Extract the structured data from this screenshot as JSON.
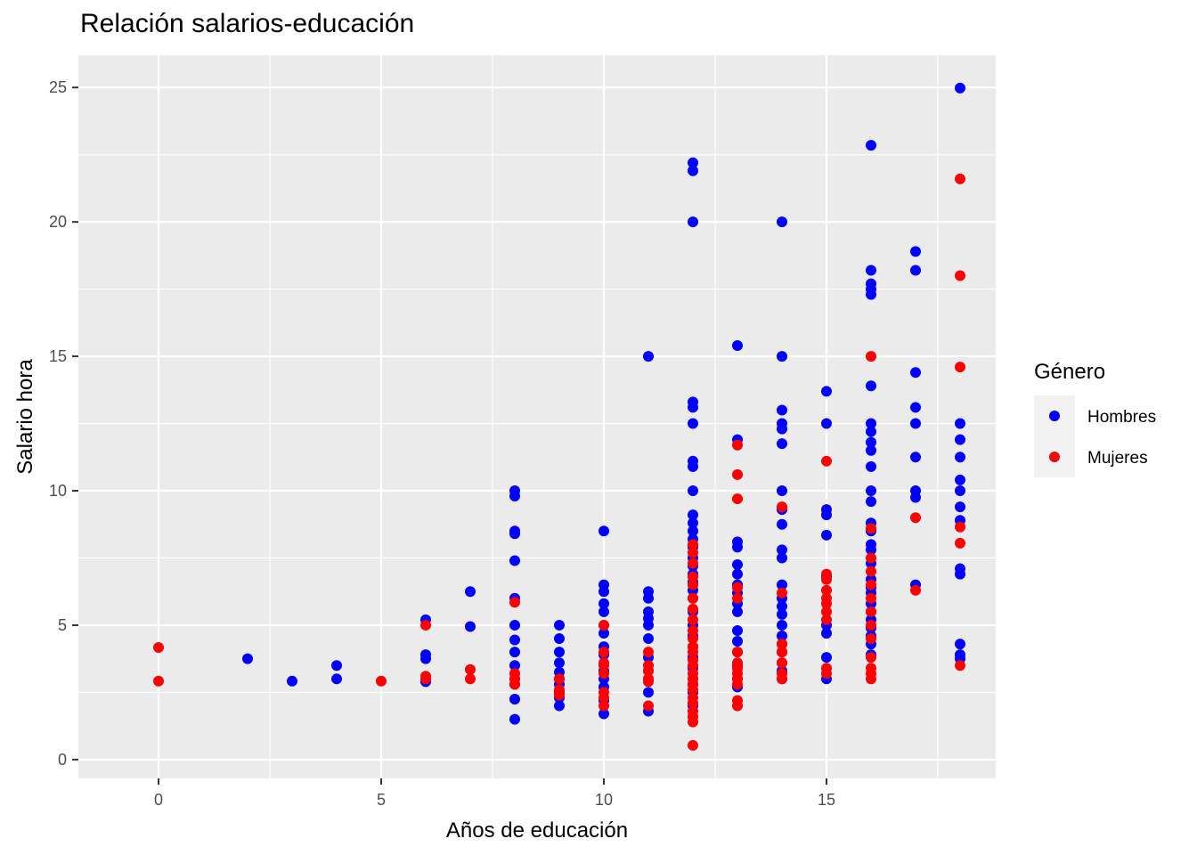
{
  "chart_data": {
    "type": "scatter",
    "title": "Relación salarios-educación",
    "xlabel": "Años de educación",
    "ylabel": "Salario hora",
    "xlim": [
      -1.8,
      18.8
    ],
    "ylim": [
      -0.7,
      26.2
    ],
    "x_ticks": [
      0,
      5,
      10,
      15
    ],
    "y_ticks": [
      0,
      5,
      10,
      15,
      20,
      25
    ],
    "grid": true,
    "legend": {
      "title": "Género",
      "placement": "right",
      "entries": [
        {
          "name": "Hombres",
          "color": "#0000ff"
        },
        {
          "name": "Mujeres",
          "color": "#ff0000"
        }
      ]
    },
    "series": [
      {
        "name": "Hombres",
        "color": "#0000ff",
        "points": [
          [
            2,
            3.75
          ],
          [
            3,
            2.92
          ],
          [
            4,
            3.5
          ],
          [
            4,
            3.0
          ],
          [
            6,
            5.2
          ],
          [
            6,
            3.9
          ],
          [
            6,
            3.75
          ],
          [
            6,
            2.9
          ],
          [
            7,
            6.25
          ],
          [
            7,
            4.95
          ],
          [
            8,
            10.0
          ],
          [
            8,
            9.8
          ],
          [
            8,
            8.5
          ],
          [
            8,
            8.4
          ],
          [
            8,
            7.4
          ],
          [
            8,
            6.0
          ],
          [
            8,
            5.0
          ],
          [
            8,
            4.45
          ],
          [
            8,
            4.0
          ],
          [
            8,
            3.5
          ],
          [
            8,
            3.0
          ],
          [
            8,
            2.8
          ],
          [
            8,
            2.25
          ],
          [
            8,
            1.5
          ],
          [
            9,
            5.0
          ],
          [
            9,
            4.5
          ],
          [
            9,
            4.0
          ],
          [
            9,
            3.6
          ],
          [
            9,
            3.25
          ],
          [
            9,
            3.0
          ],
          [
            9,
            2.8
          ],
          [
            9,
            2.5
          ],
          [
            9,
            2.3
          ],
          [
            9,
            2.0
          ],
          [
            10,
            8.5
          ],
          [
            10,
            6.5
          ],
          [
            10,
            6.25
          ],
          [
            10,
            5.8
          ],
          [
            10,
            5.5
          ],
          [
            10,
            5.0
          ],
          [
            10,
            4.7
          ],
          [
            10,
            4.2
          ],
          [
            10,
            3.9
          ],
          [
            10,
            3.3
          ],
          [
            10,
            3.0
          ],
          [
            10,
            2.7
          ],
          [
            10,
            2.2
          ],
          [
            10,
            1.7
          ],
          [
            11,
            15.0
          ],
          [
            11,
            6.25
          ],
          [
            11,
            6.0
          ],
          [
            11,
            5.5
          ],
          [
            11,
            5.25
          ],
          [
            11,
            5.0
          ],
          [
            11,
            4.5
          ],
          [
            11,
            3.8
          ],
          [
            11,
            3.3
          ],
          [
            11,
            3.0
          ],
          [
            11,
            2.5
          ],
          [
            11,
            1.8
          ],
          [
            12,
            22.2
          ],
          [
            12,
            21.9
          ],
          [
            12,
            20.0
          ],
          [
            12,
            13.3
          ],
          [
            12,
            13.1
          ],
          [
            12,
            12.5
          ],
          [
            12,
            11.1
          ],
          [
            12,
            10.9
          ],
          [
            12,
            10.0
          ],
          [
            12,
            9.1
          ],
          [
            12,
            8.8
          ],
          [
            12,
            8.5
          ],
          [
            12,
            8.2
          ],
          [
            12,
            7.9
          ],
          [
            12,
            7.5
          ],
          [
            12,
            7.2
          ],
          [
            12,
            6.9
          ],
          [
            12,
            6.6
          ],
          [
            12,
            6.3
          ],
          [
            12,
            6.0
          ],
          [
            12,
            5.5
          ],
          [
            12,
            5.0
          ],
          [
            12,
            4.6
          ],
          [
            12,
            4.2
          ],
          [
            12,
            3.8
          ],
          [
            12,
            3.4
          ],
          [
            12,
            3.0
          ],
          [
            12,
            2.8
          ],
          [
            12,
            2.5
          ],
          [
            12,
            2.0
          ],
          [
            13,
            15.4
          ],
          [
            13,
            11.9
          ],
          [
            13,
            8.1
          ],
          [
            13,
            7.9
          ],
          [
            13,
            7.25
          ],
          [
            13,
            6.9
          ],
          [
            13,
            6.5
          ],
          [
            13,
            6.2
          ],
          [
            13,
            5.8
          ],
          [
            13,
            5.5
          ],
          [
            13,
            4.8
          ],
          [
            13,
            4.4
          ],
          [
            13,
            4.0
          ],
          [
            13,
            3.5
          ],
          [
            13,
            3.0
          ],
          [
            13,
            2.7
          ],
          [
            14,
            20.0
          ],
          [
            14,
            15.0
          ],
          [
            14,
            13.0
          ],
          [
            14,
            12.5
          ],
          [
            14,
            12.3
          ],
          [
            14,
            11.75
          ],
          [
            14,
            10.0
          ],
          [
            14,
            9.3
          ],
          [
            14,
            8.75
          ],
          [
            14,
            7.8
          ],
          [
            14,
            7.5
          ],
          [
            14,
            6.5
          ],
          [
            14,
            6.0
          ],
          [
            14,
            5.7
          ],
          [
            14,
            5.4
          ],
          [
            14,
            5.0
          ],
          [
            14,
            4.6
          ],
          [
            14,
            4.3
          ],
          [
            14,
            4.0
          ],
          [
            14,
            3.6
          ],
          [
            14,
            3.3
          ],
          [
            14,
            3.0
          ],
          [
            15,
            13.7
          ],
          [
            15,
            12.5
          ],
          [
            15,
            9.3
          ],
          [
            15,
            9.1
          ],
          [
            15,
            8.35
          ],
          [
            15,
            6.8
          ],
          [
            15,
            5.0
          ],
          [
            15,
            4.7
          ],
          [
            15,
            3.8
          ],
          [
            15,
            3.0
          ],
          [
            16,
            22.85
          ],
          [
            16,
            18.2
          ],
          [
            16,
            17.7
          ],
          [
            16,
            17.5
          ],
          [
            16,
            17.3
          ],
          [
            16,
            13.9
          ],
          [
            16,
            12.5
          ],
          [
            16,
            12.2
          ],
          [
            16,
            11.8
          ],
          [
            16,
            11.5
          ],
          [
            16,
            10.9
          ],
          [
            16,
            10.0
          ],
          [
            16,
            9.6
          ],
          [
            16,
            8.8
          ],
          [
            16,
            8.5
          ],
          [
            16,
            8.0
          ],
          [
            16,
            7.8
          ],
          [
            16,
            7.3
          ],
          [
            16,
            6.7
          ],
          [
            16,
            6.4
          ],
          [
            16,
            6.2
          ],
          [
            16,
            5.8
          ],
          [
            16,
            5.5
          ],
          [
            16,
            5.2
          ],
          [
            16,
            4.9
          ],
          [
            16,
            4.6
          ],
          [
            16,
            4.3
          ],
          [
            16,
            3.9
          ],
          [
            17,
            18.9
          ],
          [
            17,
            18.2
          ],
          [
            17,
            14.4
          ],
          [
            17,
            13.1
          ],
          [
            17,
            12.5
          ],
          [
            17,
            11.25
          ],
          [
            17,
            10.0
          ],
          [
            17,
            9.75
          ],
          [
            17,
            6.5
          ],
          [
            18,
            24.98
          ],
          [
            18,
            12.5
          ],
          [
            18,
            11.9
          ],
          [
            18,
            11.25
          ],
          [
            18,
            10.4
          ],
          [
            18,
            10.0
          ],
          [
            18,
            9.4
          ],
          [
            18,
            8.9
          ],
          [
            18,
            7.1
          ],
          [
            18,
            6.9
          ],
          [
            18,
            4.3
          ],
          [
            18,
            3.9
          ],
          [
            18,
            3.75
          ]
        ]
      },
      {
        "name": "Mujeres",
        "color": "#ff0000",
        "points": [
          [
            0,
            4.17
          ],
          [
            0,
            2.92
          ],
          [
            5,
            2.92
          ],
          [
            6,
            5.0
          ],
          [
            6,
            3.1
          ],
          [
            6,
            3.0
          ],
          [
            7,
            3.35
          ],
          [
            7,
            3.0
          ],
          [
            8,
            5.85
          ],
          [
            8,
            3.2
          ],
          [
            8,
            3.0
          ],
          [
            8,
            2.8
          ],
          [
            9,
            3.0
          ],
          [
            9,
            2.6
          ],
          [
            9,
            2.4
          ],
          [
            10,
            5.0
          ],
          [
            10,
            4.0
          ],
          [
            10,
            3.6
          ],
          [
            10,
            3.5
          ],
          [
            10,
            3.2
          ],
          [
            10,
            2.5
          ],
          [
            10,
            2.3
          ],
          [
            10,
            2.0
          ],
          [
            11,
            4.0
          ],
          [
            11,
            3.5
          ],
          [
            11,
            3.3
          ],
          [
            11,
            3.0
          ],
          [
            11,
            2.9
          ],
          [
            11,
            2.0
          ],
          [
            12,
            8.0
          ],
          [
            12,
            7.7
          ],
          [
            12,
            7.3
          ],
          [
            12,
            6.8
          ],
          [
            12,
            6.5
          ],
          [
            12,
            6.0
          ],
          [
            12,
            5.6
          ],
          [
            12,
            5.2
          ],
          [
            12,
            4.8
          ],
          [
            12,
            4.5
          ],
          [
            12,
            4.2
          ],
          [
            12,
            4.0
          ],
          [
            12,
            3.7
          ],
          [
            12,
            3.5
          ],
          [
            12,
            3.2
          ],
          [
            12,
            3.0
          ],
          [
            12,
            2.8
          ],
          [
            12,
            2.6
          ],
          [
            12,
            2.3
          ],
          [
            12,
            2.1
          ],
          [
            12,
            1.8
          ],
          [
            12,
            1.6
          ],
          [
            12,
            1.4
          ],
          [
            12,
            0.53
          ],
          [
            13,
            11.7
          ],
          [
            13,
            10.6
          ],
          [
            13,
            9.7
          ],
          [
            13,
            6.4
          ],
          [
            13,
            6.0
          ],
          [
            13,
            4.0
          ],
          [
            13,
            3.6
          ],
          [
            13,
            3.4
          ],
          [
            13,
            3.2
          ],
          [
            13,
            3.0
          ],
          [
            13,
            2.8
          ],
          [
            13,
            2.2
          ],
          [
            13,
            2.0
          ],
          [
            14,
            9.4
          ],
          [
            14,
            6.2
          ],
          [
            14,
            4.3
          ],
          [
            14,
            4.0
          ],
          [
            14,
            3.6
          ],
          [
            14,
            3.2
          ],
          [
            14,
            3.0
          ],
          [
            15,
            11.1
          ],
          [
            15,
            6.9
          ],
          [
            15,
            6.7
          ],
          [
            15,
            6.3
          ],
          [
            15,
            6.0
          ],
          [
            15,
            5.8
          ],
          [
            15,
            5.5
          ],
          [
            15,
            5.2
          ],
          [
            15,
            3.4
          ],
          [
            15,
            3.2
          ],
          [
            16,
            15.0
          ],
          [
            16,
            8.6
          ],
          [
            16,
            7.5
          ],
          [
            16,
            7.0
          ],
          [
            16,
            6.5
          ],
          [
            16,
            6.0
          ],
          [
            16,
            5.5
          ],
          [
            16,
            5.0
          ],
          [
            16,
            4.5
          ],
          [
            16,
            3.8
          ],
          [
            16,
            3.4
          ],
          [
            16,
            3.2
          ],
          [
            16,
            3.0
          ],
          [
            17,
            9.0
          ],
          [
            17,
            6.3
          ],
          [
            18,
            21.6
          ],
          [
            18,
            18.0
          ],
          [
            18,
            14.6
          ],
          [
            18,
            8.65
          ],
          [
            18,
            8.05
          ],
          [
            18,
            3.5
          ]
        ]
      }
    ]
  }
}
